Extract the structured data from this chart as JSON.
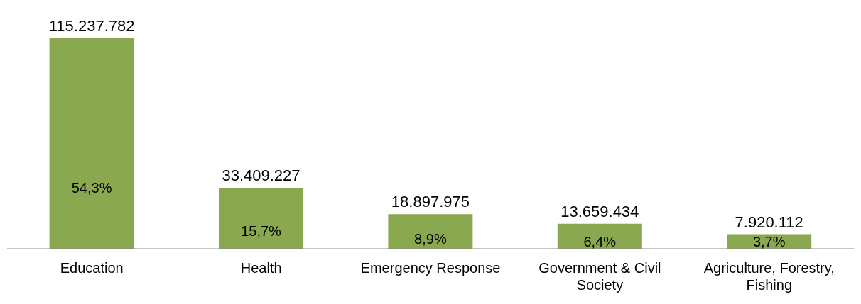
{
  "chart_data": {
    "type": "bar",
    "categories": [
      "Education",
      "Health",
      "Emergency Response",
      "Government & Civil Society",
      "Agriculture, Forestry, Fishing"
    ],
    "values": [
      115237782,
      33409227,
      18897975,
      13659434,
      7920112
    ],
    "color": "#8aa84f",
    "value_labels": [
      "115.237.782",
      "33.409.227",
      "18.897.975",
      "13.659.434",
      "7.920.112"
    ],
    "annotations": [
      "54,3%",
      "15,7%",
      "8,9%",
      "6,4%",
      "3,7%"
    ],
    "grid": false,
    "legend": false
  }
}
